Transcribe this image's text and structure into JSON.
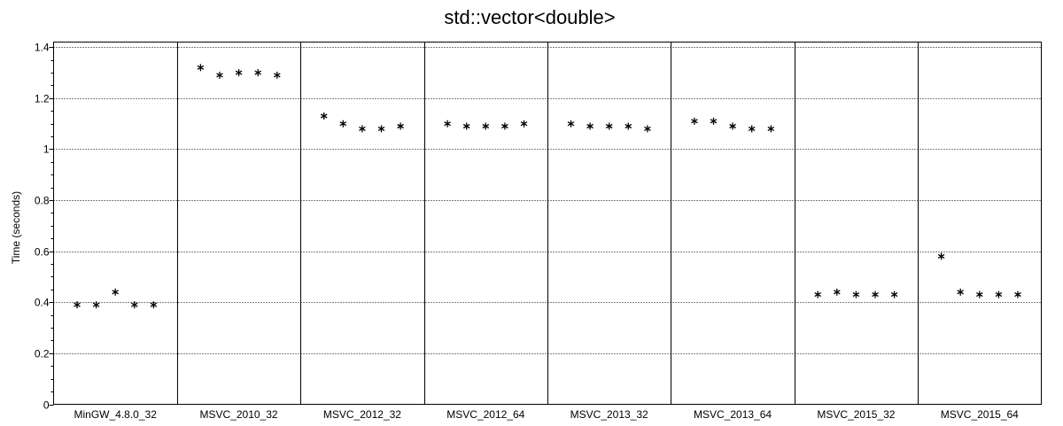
{
  "chart_data": {
    "type": "scatter",
    "title": "std::vector<double>",
    "xlabel": "",
    "ylabel": "Time (seconds)",
    "ylim": [
      0,
      1.42
    ],
    "yticks": [
      0,
      0.2,
      0.4,
      0.6,
      0.8,
      1,
      1.2,
      1.4
    ],
    "ytick_labels": [
      "0",
      "0.2",
      "0.4",
      "0.6",
      "0.8",
      "1",
      "1.2",
      "1.4"
    ],
    "grid": true,
    "marker": "asterisk",
    "categories": [
      "MinGW_4.8.0_32",
      "MSVC_2010_32",
      "MSVC_2012_32",
      "MSVC_2012_64",
      "MSVC_2013_32",
      "MSVC_2013_64",
      "MSVC_2015_32",
      "MSVC_2015_64"
    ],
    "runs_per_category": 5,
    "values": [
      [
        0.39,
        0.39,
        0.44,
        0.39,
        0.39
      ],
      [
        1.32,
        1.29,
        1.3,
        1.3,
        1.29
      ],
      [
        1.13,
        1.1,
        1.08,
        1.08,
        1.09
      ],
      [
        1.1,
        1.09,
        1.09,
        1.09,
        1.1
      ],
      [
        1.1,
        1.09,
        1.09,
        1.09,
        1.08
      ],
      [
        1.11,
        1.11,
        1.09,
        1.08,
        1.08
      ],
      [
        0.43,
        0.44,
        0.43,
        0.43,
        0.43
      ],
      [
        0.58,
        0.44,
        0.43,
        0.43,
        0.43
      ]
    ]
  }
}
